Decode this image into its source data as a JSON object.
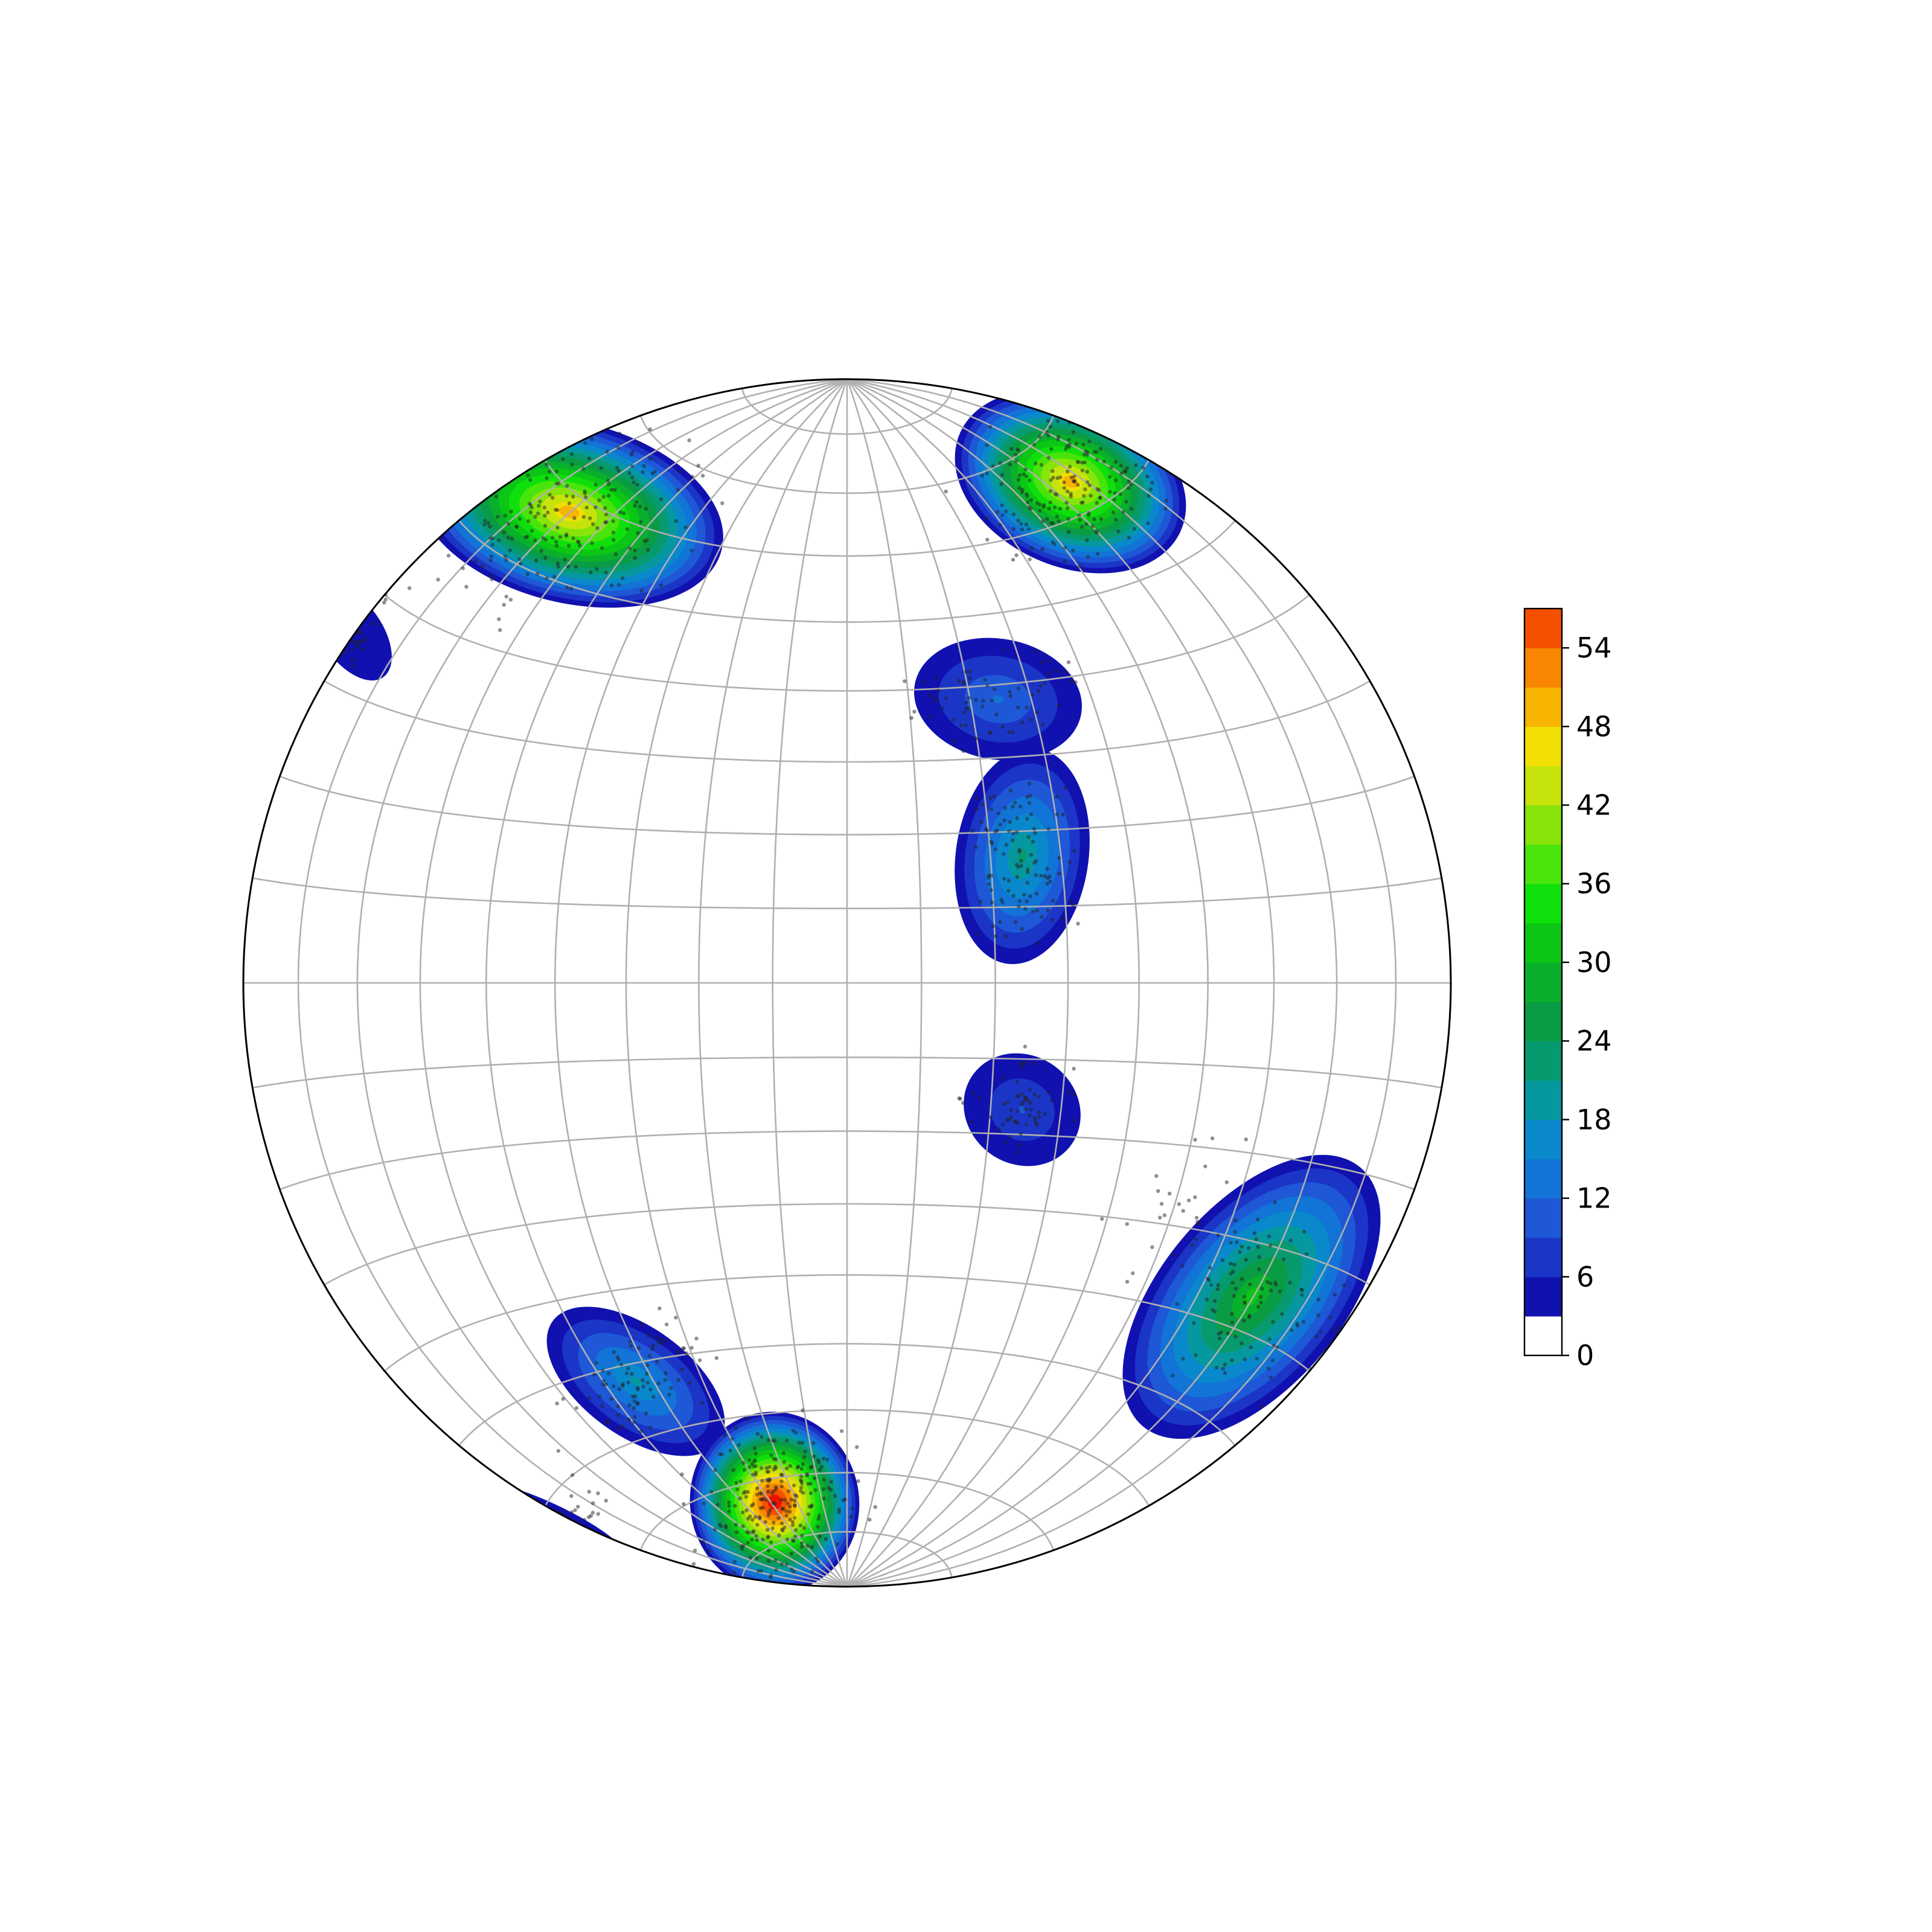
{
  "chart_data": {
    "type": "stereonet-density",
    "projection": "equal-area",
    "title": "",
    "grid": true,
    "colormap": {
      "name": "nipy_spectral-like",
      "levels": [
        0,
        3,
        6,
        9,
        12,
        15,
        18,
        21,
        24,
        27,
        30,
        33,
        36,
        39,
        42,
        45,
        48,
        51,
        54,
        57
      ],
      "colors": [
        "#ffffff",
        "#1111b0",
        "#1b36c6",
        "#1e58d6",
        "#1174d6",
        "#0a88cc",
        "#06989f",
        "#079a6e",
        "#0a9b45",
        "#0aaf2c",
        "#0bc615",
        "#0fe00c",
        "#48e40b",
        "#88e40a",
        "#c6e40b",
        "#f2e005",
        "#f7b400",
        "#f88600",
        "#f55000",
        "#e81200"
      ]
    },
    "colorbar": {
      "ticks": [
        "0",
        "6",
        "12",
        "18",
        "24",
        "30",
        "36",
        "42",
        "48",
        "54"
      ],
      "tick_values": [
        0,
        6,
        12,
        18,
        24,
        30,
        36,
        42,
        48,
        54
      ],
      "range": [
        0,
        57
      ]
    },
    "clusters": [
      {
        "id": "nw",
        "center": {
          "x": -0.46,
          "y": 0.78
        },
        "peak": 46
      },
      {
        "id": "ne",
        "center": {
          "x": 0.37,
          "y": 0.83
        },
        "peak": 47
      },
      {
        "id": "west-edge",
        "center": {
          "x": -0.82,
          "y": 0.58
        },
        "peak": 4
      },
      {
        "id": "center-upper",
        "center": {
          "x": 0.25,
          "y": 0.47
        },
        "peak": 9
      },
      {
        "id": "center-middle",
        "center": {
          "x": 0.29,
          "y": 0.21
        },
        "peak": 20
      },
      {
        "id": "center-lower",
        "center": {
          "x": 0.29,
          "y": -0.21
        },
        "peak": 8
      },
      {
        "id": "se",
        "center": {
          "x": 0.67,
          "y": -0.52
        },
        "peak": 28
      },
      {
        "id": "sw-upper",
        "center": {
          "x": -0.35,
          "y": -0.66
        },
        "peak": 15
      },
      {
        "id": "s-hotspot",
        "center": {
          "x": -0.12,
          "y": -0.86
        },
        "peak": 57
      },
      {
        "id": "sw-edge",
        "center": {
          "x": -0.5,
          "y": -0.9
        },
        "peak": 5
      }
    ]
  }
}
